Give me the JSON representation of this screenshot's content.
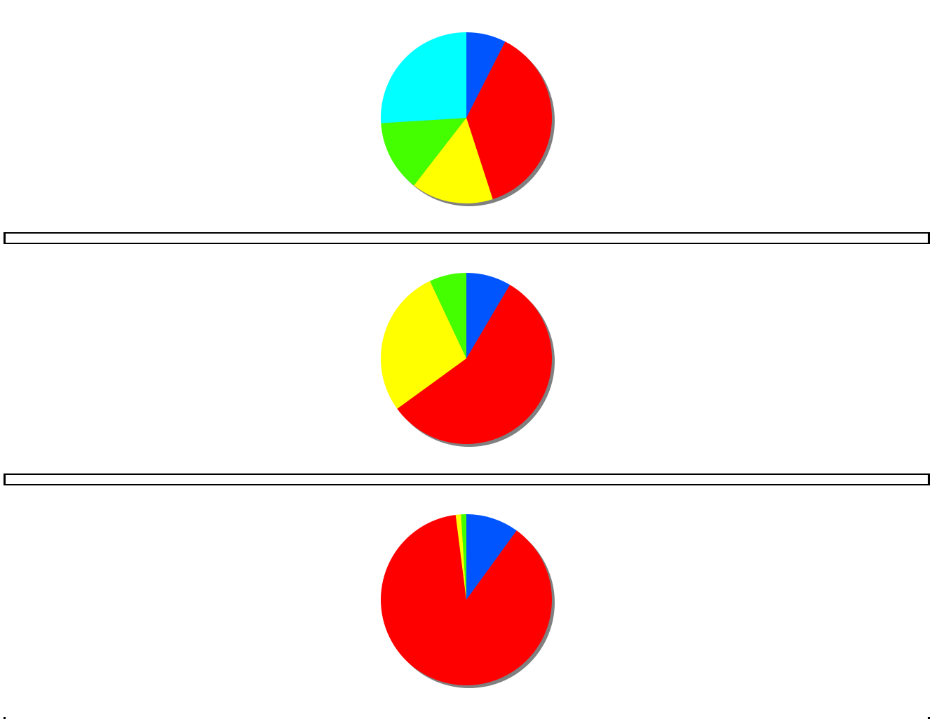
{
  "chart_data": [
    {
      "type": "pie",
      "slices": [
        {
          "value": 7.5,
          "color": "#0055ff"
        },
        {
          "value": 37.5,
          "color": "#ff0000"
        },
        {
          "value": 15.5,
          "color": "#ffff00"
        },
        {
          "value": 13.5,
          "color": "#44ff00"
        },
        {
          "value": 26.0,
          "color": "#00ffff"
        }
      ]
    },
    {
      "type": "pie",
      "slices": [
        {
          "value": 8.5,
          "color": "#0055ff"
        },
        {
          "value": 56.5,
          "color": "#ff0000"
        },
        {
          "value": 28.0,
          "color": "#ffff00"
        },
        {
          "value": 7.0,
          "color": "#44ff00"
        }
      ]
    },
    {
      "type": "pie",
      "slices": [
        {
          "value": 10.0,
          "color": "#0055ff"
        },
        {
          "value": 88.0,
          "color": "#ff0000"
        },
        {
          "value": 1.0,
          "color": "#ffff00"
        },
        {
          "value": 1.0,
          "color": "#44ff00"
        }
      ]
    }
  ],
  "colors": {
    "shadow": "#808080",
    "border": "#000000",
    "background": "#ffffff"
  }
}
